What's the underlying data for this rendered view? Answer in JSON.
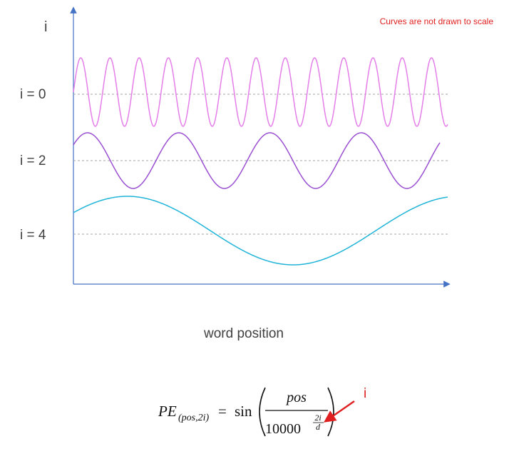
{
  "axes": {
    "y_title": "i",
    "x_title": "word position",
    "row_labels": [
      "i = 0",
      "i = 2",
      "i = 4"
    ]
  },
  "note": "Curves are not drawn to scale",
  "formula": {
    "lhs": "PE",
    "lhs_subscript": "(pos,2i)",
    "equals": "=",
    "function": "sin",
    "numerator": "pos",
    "denominator_base": "10000",
    "exponent_numerator": "2i",
    "exponent_denominator": "d",
    "callout_label": "i"
  },
  "colors": {
    "axis": "#4472c4",
    "curve_i0": "#e47ee8",
    "curve_i2": "#9b4fd1",
    "curve_i4": "#1fb4d8",
    "reference_line": "#a6a6a6",
    "note": "#e02020",
    "callout": "#e02020"
  }
}
